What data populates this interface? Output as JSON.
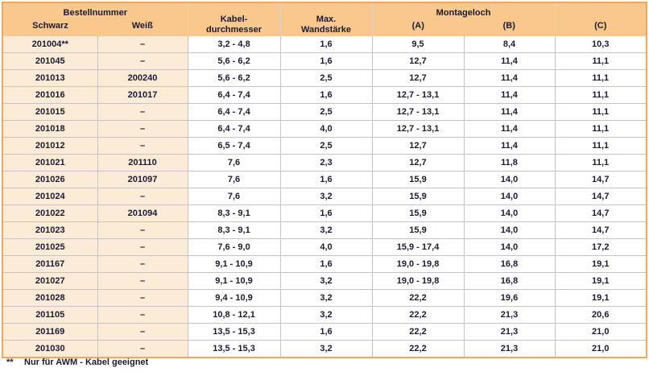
{
  "table": {
    "header": {
      "bestellnummer_group": "Bestellnummer",
      "schwarz": "Schwarz",
      "weiss": "Weiß",
      "kabel_line1": "Kabel-",
      "kabel_line2": "durchmesser",
      "max_line1": "Max.",
      "max_line2": "Wandstärke",
      "montageloch_group": "Montageloch",
      "col_a": "(A)",
      "col_b": "(B)",
      "col_c": "(C)"
    },
    "rows": [
      [
        "201004**",
        "–",
        "3,2 -  4,8",
        "1,6",
        "9,5",
        "8,4",
        "10,3"
      ],
      [
        "201045",
        "–",
        "5,6 -  6,2",
        "1,6",
        "12,7",
        "11,4",
        "11,1"
      ],
      [
        "201013",
        "200240",
        "5,6 -  6,2",
        "2,5",
        "12,7",
        "11,4",
        "11,1"
      ],
      [
        "201016",
        "201017",
        "6,4 -  7,4",
        "1,6",
        "12,7 - 13,1",
        "11,4",
        "11,1"
      ],
      [
        "201015",
        "–",
        "6,4 -  7,4",
        "2,5",
        "12,7 - 13,1",
        "11,4",
        "11,1"
      ],
      [
        "201018",
        "–",
        "6,4 -  7,4",
        "4,0",
        "12,7 - 13,1",
        "11,4",
        "11,1"
      ],
      [
        "201012",
        "–",
        "6,5 -  7,4",
        "2,5",
        "12,7",
        "11,4",
        "11,1"
      ],
      [
        "201021",
        "201110",
        "7,6",
        "2,3",
        "12,7",
        "11,8",
        "11,1"
      ],
      [
        "201026",
        "201097",
        "7,6",
        "1,6",
        "15,9",
        "14,0",
        "14,7"
      ],
      [
        "201024",
        "–",
        "7,6",
        "3,2",
        "15,9",
        "14,0",
        "14,7"
      ],
      [
        "201022",
        "201094",
        "8,3 -  9,1",
        "1,6",
        "15,9",
        "14,0",
        "14,7"
      ],
      [
        "201023",
        "–",
        "8,3 -  9,1",
        "3,2",
        "15,9",
        "14,0",
        "14,7"
      ],
      [
        "201025",
        "–",
        "7,6 -  9,0",
        "4,0",
        "15,9 - 17,4",
        "14,0",
        "17,2"
      ],
      [
        "201167",
        "–",
        "9,1 - 10,9",
        "1,6",
        "19,0 - 19,8",
        "16,8",
        "19,1"
      ],
      [
        "201027",
        "–",
        "9,1 - 10,9",
        "3,2",
        "19,0 - 19,8",
        "16,8",
        "19,1"
      ],
      [
        "201028",
        "–",
        "9,4 - 10,9",
        "3,2",
        "22,2",
        "19,6",
        "19,1"
      ],
      [
        "201105",
        "–",
        "10,8 - 12,1",
        "3,2",
        "22,2",
        "21,3",
        "20,6"
      ],
      [
        "201169",
        "–",
        "13,5 - 15,3",
        "1,6",
        "22,2",
        "21,3",
        "21,0"
      ],
      [
        "201030",
        "–",
        "13,5 - 15,3",
        "3,2",
        "22,2",
        "21,3",
        "21,0"
      ]
    ],
    "column_semantics": [
      "cell-bestellnummer-schwarz",
      "cell-bestellnummer-weiss",
      "cell-kabeldurchmesser",
      "cell-max-wandstaerke",
      "cell-montageloch-a",
      "cell-montageloch-b",
      "cell-montageloch-c"
    ]
  },
  "footnote": {
    "marker": "**",
    "text": "Nur für AWM - Kabel geeignet"
  },
  "colors": {
    "header_bg": "#fac88c",
    "accent_cell_bg": "#fcebd7",
    "outer_border": "#f0a858",
    "grid_line": "#c4c4c4",
    "text": "#1a1a33"
  }
}
